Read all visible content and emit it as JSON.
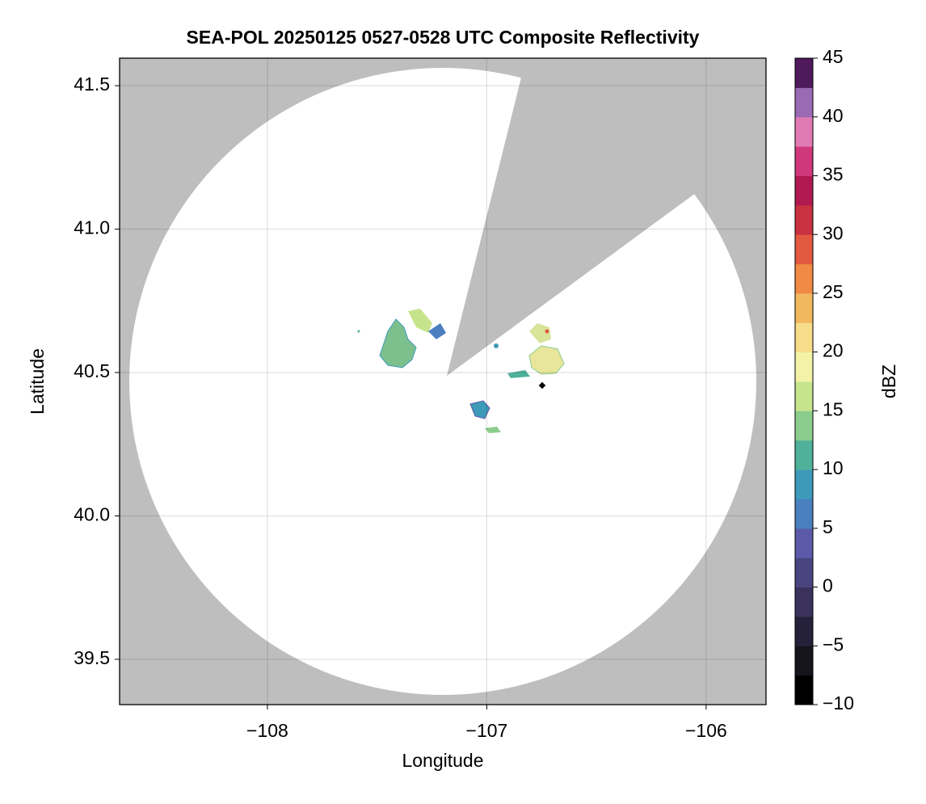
{
  "chart_data": {
    "type": "radar_map",
    "title": "SEA-POL 20250125 0527-0528 UTC Composite Reflectivity",
    "x_label": "Longitude",
    "y_label": "Latitude",
    "xlim": [
      -108.674,
      -105.727
    ],
    "ylim": [
      39.342,
      41.596
    ],
    "xticks": [
      {
        "value": -108,
        "label": "−108"
      },
      {
        "value": -107,
        "label": "−107"
      },
      {
        "value": -106,
        "label": "−106"
      }
    ],
    "yticks": [
      39.5,
      {
        "value": 40,
        "label": "40.0"
      },
      40.5,
      {
        "value": 41,
        "label": "41.0"
      },
      41.5
    ],
    "grid": true,
    "colorbar": {
      "label": "dBZ",
      "lim": [
        -10,
        45
      ],
      "ticks": [
        {
          "value": -10,
          "label": "−10"
        },
        {
          "value": -5,
          "label": "−5"
        },
        0,
        5,
        10,
        15,
        20,
        25,
        30,
        35,
        40,
        45
      ],
      "colors": [
        "#000000",
        "#15131c",
        "#25213a",
        "#3a325a",
        "#4a4480",
        "#5c5aa8",
        "#4a7fc0",
        "#3d9ab8",
        "#4fb19a",
        "#8ccc8c",
        "#c6e48c",
        "#f3f3a8",
        "#f5dd8a",
        "#f2b860",
        "#f08a45",
        "#e25a40",
        "#c83240",
        "#b01a50",
        "#d0387c",
        "#e07ab4",
        "#9a6ab4",
        "#4e1a5c"
      ]
    }
  }
}
